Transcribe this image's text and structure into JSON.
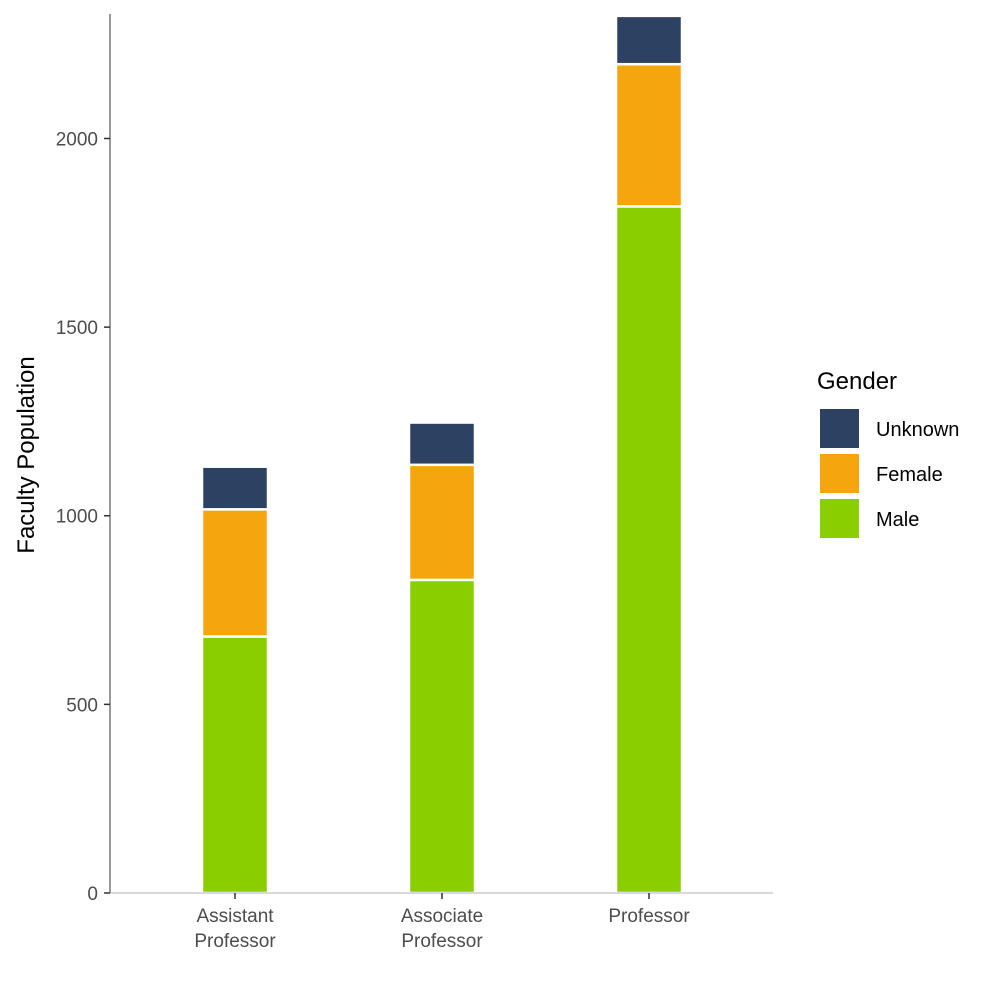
{
  "chart_data": {
    "type": "bar",
    "stacked": true,
    "title": "",
    "xlabel": "",
    "ylabel": "Faculty Population",
    "ylim": [
      0,
      2330
    ],
    "yticks": [
      0,
      500,
      1000,
      1500,
      2000
    ],
    "grid": false,
    "legend_position": "right",
    "legend_title": "Gender",
    "categories": [
      [
        "Assistant",
        "Professor"
      ],
      [
        "Associate",
        "Professor"
      ],
      [
        "Professor"
      ]
    ],
    "series": [
      {
        "name": "Male",
        "color": "#8ACE00",
        "values": [
          680,
          830,
          1820
        ]
      },
      {
        "name": "Female",
        "color": "#F5A60E",
        "values": [
          337,
          305,
          377
        ]
      },
      {
        "name": "Unknown",
        "color": "#2D4163",
        "values": [
          113,
          112,
          128
        ]
      }
    ],
    "legend_order": [
      "Unknown",
      "Female",
      "Male"
    ]
  }
}
